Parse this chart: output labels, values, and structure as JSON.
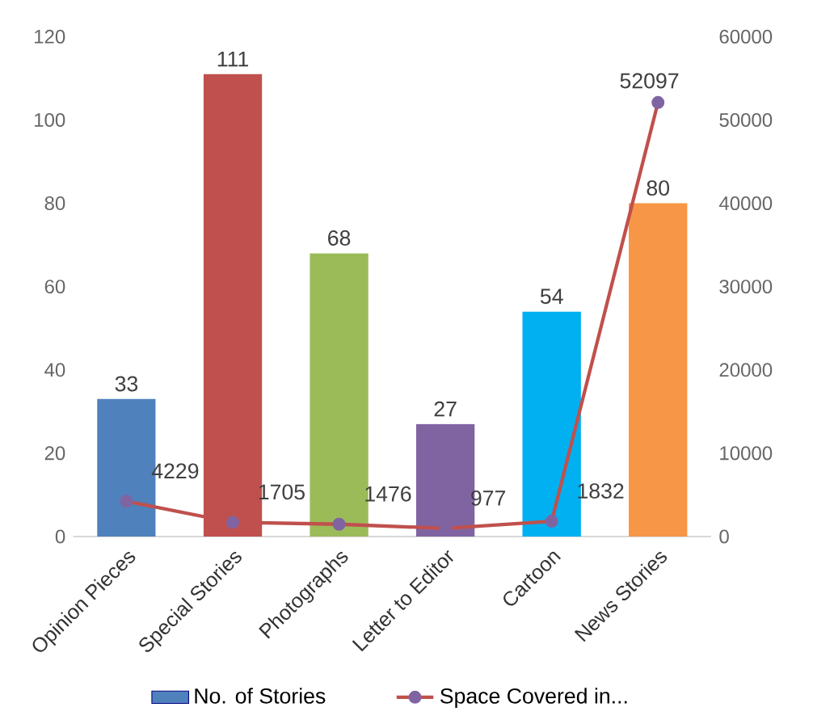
{
  "chart_data": {
    "type": "bar",
    "categories": [
      "Opinion Pieces",
      "Special Stories",
      "Photographs",
      "Letter to Editor",
      "Cartoon",
      "News Stories"
    ],
    "series": [
      {
        "name": "No. of Stories",
        "colors": [
          "#4f81bd",
          "#c0504d",
          "#9bbb59",
          "#8064a2",
          "#00b0f0",
          "#f79646"
        ],
        "values": [
          33,
          111,
          68,
          27,
          54,
          80
        ]
      },
      {
        "name": "Space Covered in...",
        "type": "line",
        "axis": "y2",
        "color": "#c0504d",
        "marker": "circle",
        "values": [
          4229,
          1705,
          1476,
          977,
          1832,
          52097
        ]
      }
    ],
    "ylim": [
      0,
      120
    ],
    "yticks": [
      0,
      20,
      40,
      60,
      80,
      100,
      120
    ],
    "y2lim": [
      0,
      60000
    ],
    "y2ticks": [
      0,
      10000,
      20000,
      30000,
      40000,
      50000,
      60000
    ],
    "data_labels": true,
    "legend": "bottom"
  }
}
